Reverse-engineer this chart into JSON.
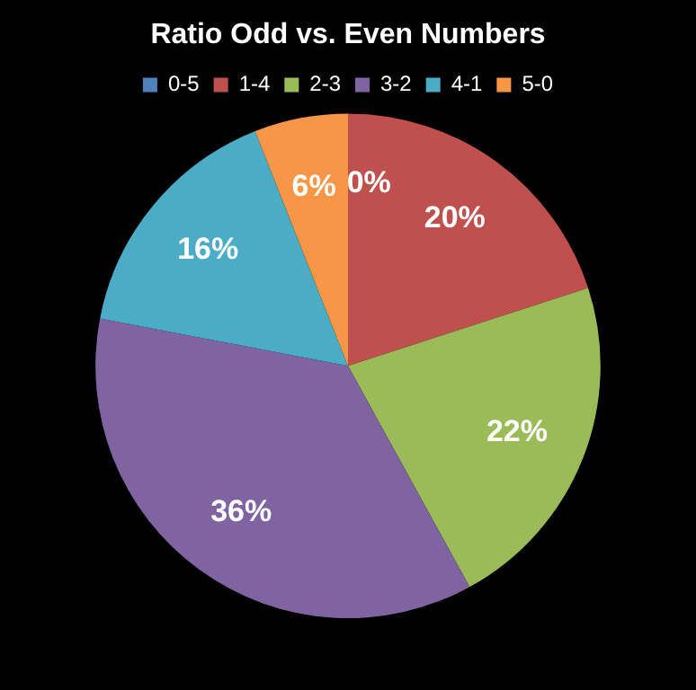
{
  "chart_data": {
    "type": "pie",
    "title": "Ratio Odd vs. Even Numbers",
    "categories": [
      "0-5",
      "1-4",
      "2-3",
      "3-2",
      "4-1",
      "5-0"
    ],
    "values": [
      0,
      20,
      22,
      36,
      16,
      6
    ],
    "value_labels": [
      "0%",
      "20%",
      "22%",
      "36%",
      "16%",
      "6%"
    ],
    "colors": [
      "#4f81bd",
      "#c0504d",
      "#9bbb59",
      "#8064a2",
      "#4bacc6",
      "#f79646"
    ],
    "legend": "top"
  }
}
